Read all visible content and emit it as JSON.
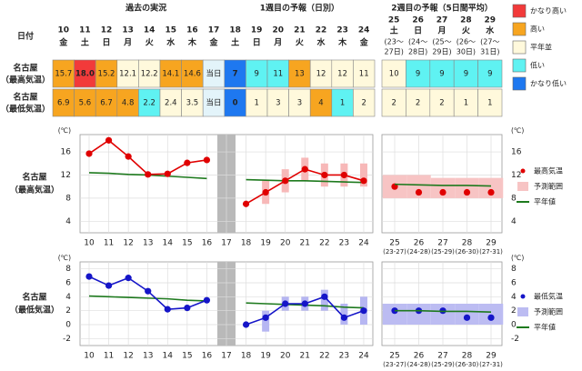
{
  "table": {
    "date_label": "日付",
    "groups": [
      "過去の実況",
      "1週目の予報（日別）",
      "2週目の予報（5日間平均）"
    ],
    "dates": [
      {
        "day": "10",
        "weekday": "金"
      },
      {
        "day": "11",
        "weekday": "土",
        "color": "#1a3cc8"
      },
      {
        "day": "12",
        "weekday": "日",
        "color": "#e00000"
      },
      {
        "day": "13",
        "weekday": "月"
      },
      {
        "day": "14",
        "weekday": "火"
      },
      {
        "day": "15",
        "weekday": "水"
      },
      {
        "day": "16",
        "weekday": "木"
      },
      {
        "day": "17",
        "weekday": "金"
      },
      {
        "day": "18",
        "weekday": "土",
        "color": "#1a3cc8"
      },
      {
        "day": "19",
        "weekday": "日",
        "color": "#e00000"
      },
      {
        "day": "20",
        "weekday": "月"
      },
      {
        "day": "21",
        "weekday": "火"
      },
      {
        "day": "22",
        "weekday": "水"
      },
      {
        "day": "23",
        "weekday": "木"
      },
      {
        "day": "24",
        "weekday": "金"
      }
    ],
    "week2_dates": [
      {
        "day": "25",
        "weekday": "土",
        "color": "#1a3cc8",
        "range": [
          "(23～",
          "27日)"
        ]
      },
      {
        "day": "26",
        "weekday": "日",
        "color": "#e00000",
        "range": [
          "(24～",
          "28日)"
        ]
      },
      {
        "day": "27",
        "weekday": "月",
        "range": [
          "(25～",
          "29日)"
        ]
      },
      {
        "day": "28",
        "weekday": "火",
        "range": [
          "(26～",
          "30日)"
        ]
      },
      {
        "day": "29",
        "weekday": "水",
        "range": [
          "(27～",
          "31日)"
        ]
      }
    ],
    "rows": [
      {
        "name": "名古屋",
        "sub": "（最高気温）",
        "cells": [
          {
            "text": "15.7",
            "color": "#f7a520"
          },
          {
            "text": "18.0",
            "color": "#f23a3a",
            "text_color": "#ffffff"
          },
          {
            "text": "15.2",
            "color": "#f7a520"
          },
          {
            "text": "12.1",
            "color": "#fff9dc"
          },
          {
            "text": "12.2",
            "color": "#fff9dc"
          },
          {
            "text": "14.1",
            "color": "#f7a520"
          },
          {
            "text": "14.6",
            "color": "#f7a520"
          },
          {
            "text": "当日",
            "color": "#e3f4fa"
          },
          {
            "text": "7",
            "color": "#1e78f0",
            "text_color": "#ffffff"
          },
          {
            "text": "9",
            "color": "#5ff2f2"
          },
          {
            "text": "11",
            "color": "#5ff2f2"
          },
          {
            "text": "13",
            "color": "#f7a520"
          },
          {
            "text": "12",
            "color": "#fff9dc"
          },
          {
            "text": "12",
            "color": "#fff9dc"
          },
          {
            "text": "11",
            "color": "#fff9dc"
          }
        ],
        "week2": [
          {
            "text": "10",
            "color": "#fff9dc"
          },
          {
            "text": "9",
            "color": "#5ff2f2"
          },
          {
            "text": "9",
            "color": "#5ff2f2"
          },
          {
            "text": "9",
            "color": "#5ff2f2"
          },
          {
            "text": "9",
            "color": "#5ff2f2"
          }
        ]
      },
      {
        "name": "名古屋",
        "sub": "（最低気温）",
        "cells": [
          {
            "text": "6.9",
            "color": "#f7a520"
          },
          {
            "text": "5.6",
            "color": "#f7a520"
          },
          {
            "text": "6.7",
            "color": "#f7a520"
          },
          {
            "text": "4.8",
            "color": "#f7a520"
          },
          {
            "text": "2.2",
            "color": "#5ff2f2"
          },
          {
            "text": "2.4",
            "color": "#fff9dc"
          },
          {
            "text": "3.5",
            "color": "#fff9dc"
          },
          {
            "text": "当日",
            "color": "#e3f4fa"
          },
          {
            "text": "0",
            "color": "#1e78f0",
            "text_color": "#ffffff"
          },
          {
            "text": "1",
            "color": "#fff9dc"
          },
          {
            "text": "3",
            "color": "#fff9dc"
          },
          {
            "text": "3",
            "color": "#fff9dc"
          },
          {
            "text": "4",
            "color": "#f7a520"
          },
          {
            "text": "1",
            "color": "#5ff2f2"
          },
          {
            "text": "2",
            "color": "#fff9dc"
          }
        ],
        "week2": [
          {
            "text": "2",
            "color": "#fff9dc"
          },
          {
            "text": "2",
            "color": "#fff9dc"
          },
          {
            "text": "2",
            "color": "#fff9dc"
          },
          {
            "text": "1",
            "color": "#fff9dc"
          },
          {
            "text": "1",
            "color": "#fff9dc"
          }
        ]
      }
    ],
    "legend": [
      {
        "label": "かなり高い",
        "color": "#f23a3a"
      },
      {
        "label": "高い",
        "color": "#f7a520"
      },
      {
        "label": "平年並",
        "color": "#fff9dc"
      },
      {
        "label": "低い",
        "color": "#5ff2f2"
      },
      {
        "label": "かなり低い",
        "color": "#1e78f0"
      }
    ]
  },
  "chart_data": [
    {
      "type": "line",
      "name": "名古屋",
      "sub": "（最高気温）",
      "y_unit": "(℃)",
      "categories": [
        "10",
        "11",
        "12",
        "13",
        "14",
        "15",
        "16",
        "17",
        "18",
        "19",
        "20",
        "21",
        "22",
        "23",
        "24"
      ],
      "shaded_index": 7,
      "ylim": [
        2,
        19
      ],
      "yticks": [
        4,
        8,
        12,
        16
      ],
      "grid": true,
      "series": [
        {
          "kind": "range",
          "color": "#f7b8b8",
          "low": [
            null,
            null,
            null,
            null,
            null,
            null,
            null,
            null,
            null,
            7,
            9,
            11,
            10,
            10,
            10
          ],
          "high": [
            null,
            null,
            null,
            null,
            null,
            null,
            null,
            null,
            null,
            11,
            13,
            15,
            14,
            14,
            14
          ]
        },
        {
          "color": "#1e7a1e",
          "values": [
            12.4,
            12.3,
            12.1,
            12.0,
            11.8,
            11.6,
            11.4,
            null,
            11.2,
            11.1,
            11.0,
            11.0,
            10.9,
            10.8,
            10.7
          ]
        },
        {
          "color": "#e00000",
          "marker": true,
          "values": [
            15.7,
            18.0,
            15.2,
            12.1,
            12.2,
            14.1,
            14.6,
            null,
            7,
            9,
            11,
            13,
            12,
            12,
            11
          ]
        }
      ]
    },
    {
      "type": "line",
      "y_unit": "(℃)",
      "categories": [
        "25",
        "26",
        "27",
        "28",
        "29"
      ],
      "sublabels": [
        "(23-27)",
        "(24-28)",
        "(25-29)",
        "(26-30)",
        "(27-31)"
      ],
      "ylim": [
        2,
        19
      ],
      "yticks": [
        4,
        8,
        12,
        16
      ],
      "grid": true,
      "axis_side": "right",
      "series": [
        {
          "name": "最高気温",
          "color": "#e00000",
          "marker": true,
          "line": false,
          "values": [
            10,
            9,
            9,
            9,
            9
          ]
        },
        {
          "name": "予測範囲",
          "kind": "range",
          "color": "#f7c4c4",
          "low": [
            8,
            8,
            8,
            8,
            8
          ],
          "high": [
            12,
            12,
            11.5,
            11.5,
            11.5
          ]
        },
        {
          "name": "平年値",
          "color": "#1e7a1e",
          "values": [
            10.4,
            10.3,
            10.2,
            10.2,
            10.1
          ]
        }
      ]
    },
    {
      "type": "line",
      "name": "名古屋",
      "sub": "（最低気温）",
      "y_unit": "(℃)",
      "categories": [
        "10",
        "11",
        "12",
        "13",
        "14",
        "15",
        "16",
        "17",
        "18",
        "19",
        "20",
        "21",
        "22",
        "23",
        "24"
      ],
      "shaded_index": 7,
      "ylim": [
        -3,
        9
      ],
      "yticks": [
        -2,
        0,
        2,
        4,
        6,
        8
      ],
      "grid": true,
      "series": [
        {
          "kind": "range",
          "color": "#b6b6f2",
          "low": [
            null,
            null,
            null,
            null,
            null,
            null,
            null,
            null,
            null,
            -1,
            2,
            2,
            2,
            0,
            0
          ],
          "high": [
            null,
            null,
            null,
            null,
            null,
            null,
            null,
            null,
            null,
            2,
            4,
            4,
            5,
            3,
            4
          ]
        },
        {
          "color": "#1e7a1e",
          "values": [
            4.1,
            4.0,
            3.9,
            3.8,
            3.7,
            3.5,
            3.4,
            null,
            3.1,
            3.0,
            2.9,
            2.8,
            2.7,
            2.5,
            2.4
          ]
        },
        {
          "color": "#1515c8",
          "marker": true,
          "values": [
            6.9,
            5.6,
            6.7,
            4.8,
            2.2,
            2.4,
            3.5,
            null,
            0,
            1,
            3,
            3,
            4,
            1,
            2
          ]
        }
      ]
    },
    {
      "type": "line",
      "y_unit": "(℃)",
      "categories": [
        "25",
        "26",
        "27",
        "28",
        "29"
      ],
      "sublabels": [
        "(23-27)",
        "(24-28)",
        "(25-29)",
        "(26-30)",
        "(27-31)"
      ],
      "ylim": [
        -3,
        9
      ],
      "yticks": [
        -2,
        0,
        2,
        4,
        6,
        8
      ],
      "grid": true,
      "axis_side": "right",
      "series": [
        {
          "name": "最低気温",
          "color": "#1515c8",
          "marker": true,
          "line": false,
          "values": [
            2,
            2,
            2,
            1,
            1
          ]
        },
        {
          "name": "予測範囲",
          "kind": "range",
          "color": "#bcbcf2",
          "low": [
            0,
            0,
            0,
            0,
            0
          ],
          "high": [
            3,
            3,
            3,
            3,
            3
          ]
        },
        {
          "name": "平年値",
          "color": "#1e7a1e",
          "values": [
            2.0,
            2.0,
            1.9,
            1.9,
            1.8
          ]
        }
      ]
    }
  ]
}
